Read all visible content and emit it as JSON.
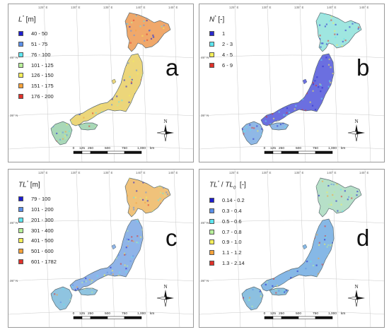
{
  "panels": [
    {
      "id": "a",
      "letter": "a",
      "legend_title": {
        "var": "L",
        "sup": "*",
        "unit": " [m]"
      },
      "legend": [
        {
          "label": "40 - 50",
          "color": "#1d1dcf"
        },
        {
          "label": "51 - 75",
          "color": "#5b8fe8"
        },
        {
          "label": "76 - 100",
          "color": "#5ee6f0"
        },
        {
          "label": "101 - 125",
          "color": "#b8f09a"
        },
        {
          "label": "126 - 150",
          "color": "#f5ee5a"
        },
        {
          "label": "151 - 175",
          "color": "#f5a23a"
        },
        {
          "label": "176 - 200",
          "color": "#e0322a"
        }
      ],
      "fill": {
        "north": "#f0a86a",
        "honshu": "#ecd67a",
        "south": "#a9d8b8"
      }
    },
    {
      "id": "b",
      "letter": "b",
      "legend_title": {
        "var": "N",
        "sup": "*",
        "unit": " [-]"
      },
      "legend": [
        {
          "label": "1",
          "color": "#2a2acd"
        },
        {
          "label": "2 - 3",
          "color": "#5ee6f0"
        },
        {
          "label": "4 - 5",
          "color": "#f5ee5a"
        },
        {
          "label": "6 - 9",
          "color": "#e0322a"
        }
      ],
      "fill": {
        "north": "#9fe6e0",
        "honshu": "#6b6fe0",
        "south": "#8fb8e6"
      }
    },
    {
      "id": "c",
      "letter": "c",
      "legend_title": {
        "var": "TL",
        "sup": "*",
        "unit": " [m]"
      },
      "legend": [
        {
          "label": "79 - 100",
          "color": "#1d1dcf"
        },
        {
          "label": "101 - 200",
          "color": "#5b8fe8"
        },
        {
          "label": "201 - 300",
          "color": "#5ee6f0"
        },
        {
          "label": "301 - 400",
          "color": "#b8f09a"
        },
        {
          "label": "401 - 500",
          "color": "#f5ee5a"
        },
        {
          "label": "501 - 600",
          "color": "#f5a23a"
        },
        {
          "label": "601 - 1782",
          "color": "#e0322a"
        }
      ],
      "fill": {
        "north": "#f0c27a",
        "honshu": "#8fb4e8",
        "south": "#8fc4e0"
      }
    },
    {
      "id": "d",
      "letter": "d",
      "legend_title": {
        "var": "TL",
        "sup": "*",
        "sep": " / ",
        "var2": "TL",
        "sub2": "0",
        "unit": "  [-]"
      },
      "legend": [
        {
          "label": "0.14 - 0.2",
          "color": "#1d1dcf"
        },
        {
          "label": "0.3 - 0.4",
          "color": "#5b8fe8"
        },
        {
          "label": "0.5 - 0.6",
          "color": "#5ee6f0"
        },
        {
          "label": "0.7 - 0.8",
          "color": "#b8f09a"
        },
        {
          "label": "0.9 - 1.0",
          "color": "#f5ee5a"
        },
        {
          "label": "1.1 - 1.2",
          "color": "#f5a23a"
        },
        {
          "label": "1.3 - 2.14",
          "color": "#e0322a"
        }
      ],
      "fill": {
        "north": "#b6e0c8",
        "honshu": "#86b8e6",
        "south": "#8cc0e0"
      }
    }
  ],
  "scale": {
    "ticks": [
      "0",
      "125",
      "250",
      "500",
      "750",
      "1,000"
    ],
    "unit": "km"
  },
  "compass": {
    "label": "N"
  },
  "graticule": {
    "lon": [
      "125° E",
      "130° E",
      "135° E",
      "140° E",
      "145° E"
    ],
    "lat": [
      "45° N",
      "35° N",
      "30° N"
    ]
  }
}
